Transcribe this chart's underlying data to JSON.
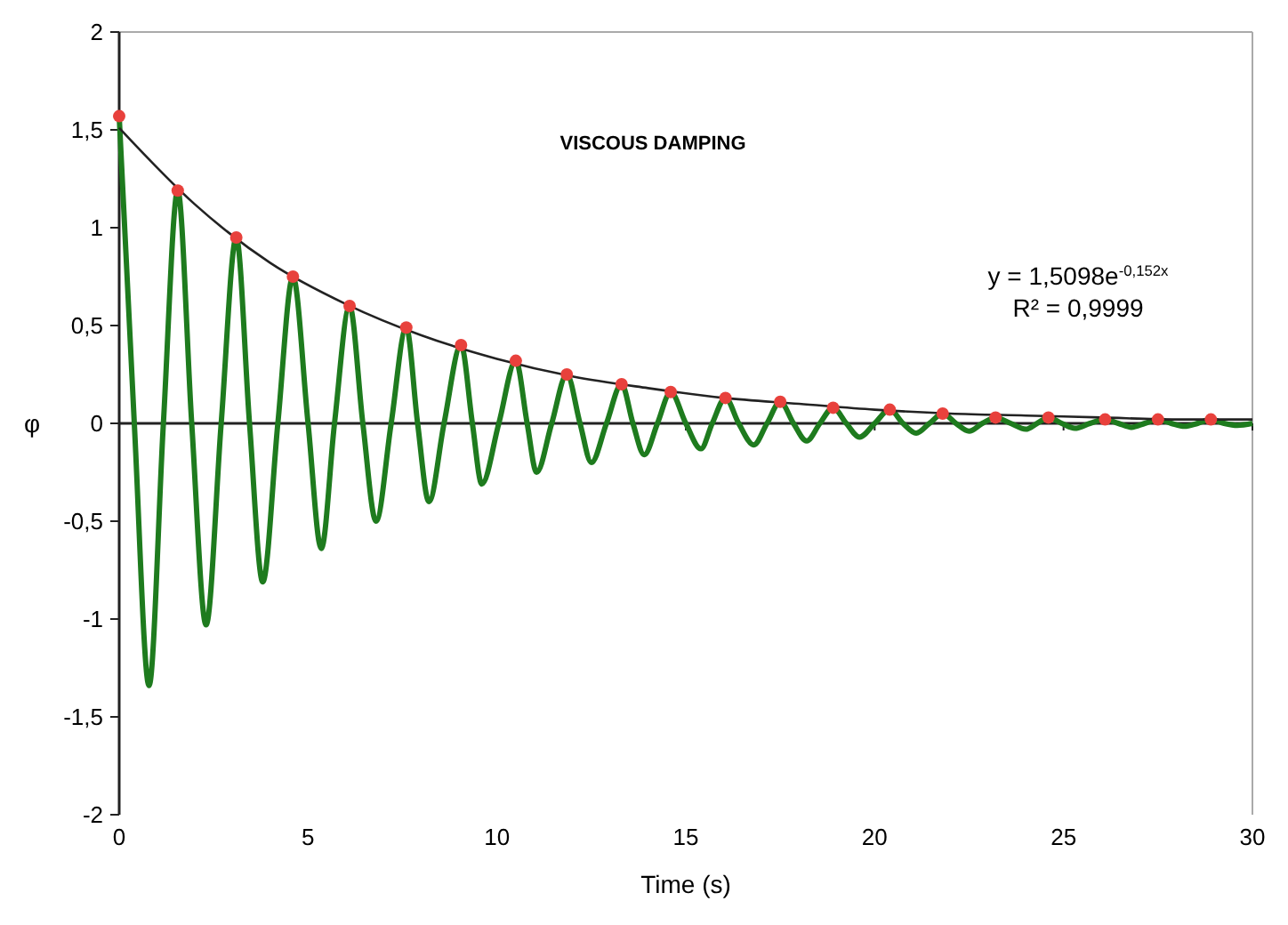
{
  "chart_data": {
    "type": "line",
    "title": "VISCOUS DAMPING",
    "xlabel": "Time (s)",
    "ylabel": "φ",
    "annotations": [
      "y = 1,5098e$^{-0,152x}$",
      "R² = 0,9999"
    ],
    "xlim": [
      0,
      30
    ],
    "xticks": [
      0,
      5,
      10,
      15,
      20,
      25,
      30
    ],
    "ylim": [
      -2,
      2
    ],
    "yticks": [
      -2,
      {
        "value": -1.5,
        "label": "-1,5"
      },
      -1,
      {
        "value": -0.5,
        "label": "-0,5"
      },
      0,
      {
        "value": 0.5,
        "label": "0,5"
      },
      1,
      {
        "value": 1.5,
        "label": "1,5"
      },
      2
    ],
    "grid": false,
    "ref_lines": [
      {
        "axis": "y",
        "value": 0,
        "color": "#222222"
      }
    ],
    "series": [
      {
        "color": "#1e7b1e",
        "x": [
          0,
          0.4,
          0.79,
          1.17,
          1.55,
          1.92,
          2.3,
          2.7,
          3.1,
          3.45,
          3.8,
          4.2,
          4.6,
          5.0,
          5.35,
          5.7,
          6.1,
          6.45,
          6.8,
          7.2,
          7.6,
          7.9,
          8.2,
          8.6,
          9.05,
          9.35,
          9.6,
          10.05,
          10.5,
          10.8,
          11.05,
          11.45,
          11.85,
          12.2,
          12.5,
          12.9,
          13.3,
          13.6,
          13.9,
          14.25,
          14.6,
          15.0,
          15.4,
          15.7,
          16.05,
          16.4,
          16.8,
          17.15,
          17.5,
          17.85,
          18.2,
          18.55,
          18.9,
          19.25,
          19.6,
          20.0,
          20.4,
          20.75,
          21.1,
          21.45,
          21.8,
          22.15,
          22.5,
          22.85,
          23.2,
          23.6,
          24.0,
          24.3,
          24.6,
          24.95,
          25.3,
          25.7,
          26.1,
          26.45,
          26.8,
          27.15,
          27.5,
          27.85,
          28.2,
          28.55,
          28.9,
          29.25,
          29.6,
          30
        ],
        "values": [
          1.57,
          0,
          -1.34,
          0,
          1.19,
          0,
          -1.03,
          0,
          0.95,
          0,
          -0.81,
          0,
          0.75,
          0,
          -0.64,
          0,
          0.6,
          0,
          -0.5,
          0,
          0.49,
          0,
          -0.4,
          0,
          0.4,
          0,
          -0.31,
          0,
          0.32,
          0,
          -0.25,
          0,
          0.25,
          0,
          -0.2,
          0,
          0.2,
          0,
          -0.16,
          0,
          0.16,
          0,
          -0.13,
          0,
          0.13,
          0,
          -0.11,
          0,
          0.11,
          0,
          -0.09,
          0,
          0.08,
          0,
          -0.07,
          0,
          0.07,
          0,
          -0.05,
          0,
          0.05,
          0,
          -0.04,
          0,
          0.03,
          0,
          -0.03,
          0,
          0.03,
          0,
          -0.025,
          0,
          0.02,
          0,
          -0.02,
          0,
          0.02,
          0,
          -0.015,
          0,
          0.02,
          0,
          -0.01,
          0
        ]
      },
      {
        "color": "#222222",
        "x": [
          0,
          2,
          4,
          6,
          8,
          10,
          12,
          14,
          16,
          18,
          20,
          22,
          24,
          26,
          28,
          30
        ],
        "values": [
          1.51,
          1.12,
          0.82,
          0.61,
          0.45,
          0.33,
          0.24,
          0.18,
          0.13,
          0.1,
          0.07,
          0.05,
          0.04,
          0.03,
          0.02,
          0.02
        ]
      },
      {
        "type": "scatter",
        "color": "#e8413c",
        "x": [
          0,
          1.55,
          3.1,
          4.6,
          6.1,
          7.6,
          9.05,
          10.5,
          11.85,
          13.3,
          14.6,
          16.05,
          17.5,
          18.9,
          20.4,
          21.8,
          23.2,
          24.6,
          26.1,
          27.5,
          28.9
        ],
        "values": [
          1.57,
          1.19,
          0.95,
          0.75,
          0.6,
          0.49,
          0.4,
          0.32,
          0.25,
          0.2,
          0.16,
          0.13,
          0.11,
          0.08,
          0.07,
          0.05,
          0.03,
          0.03,
          0.02,
          0.02,
          0.02
        ]
      }
    ]
  }
}
